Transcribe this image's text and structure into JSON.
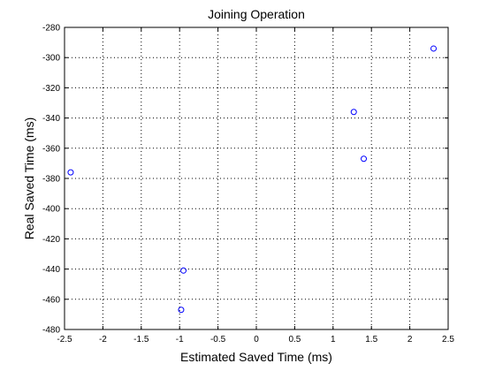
{
  "chart_data": {
    "type": "scatter",
    "title": "Joining Operation",
    "xlabel": "Estimated Saved Time (ms)",
    "ylabel": "Real Saved Time (ms)",
    "xlim": [
      -2.5,
      2.5
    ],
    "ylim": [
      -480,
      -280
    ],
    "xticks": [
      -2.5,
      -2,
      -1.5,
      -1,
      -0.5,
      0,
      0.5,
      1,
      1.5,
      2,
      2.5
    ],
    "xtick_labels": [
      "-2.5",
      "-2",
      "-1.5",
      "-1",
      "-0.5",
      "0",
      "0.5",
      "1",
      "1.5",
      "2",
      "2.5"
    ],
    "yticks": [
      -280,
      -300,
      -320,
      -340,
      -360,
      -380,
      -400,
      -420,
      -440,
      -460,
      -480
    ],
    "ytick_labels": [
      "-280",
      "-300",
      "-320",
      "-340",
      "-360",
      "-380",
      "-400",
      "-420",
      "-440",
      "-460",
      "-480"
    ],
    "grid": true,
    "marker": "circle",
    "marker_color": "#0000ff",
    "points": [
      {
        "x": -2.42,
        "y": -376
      },
      {
        "x": -0.95,
        "y": -441
      },
      {
        "x": -0.98,
        "y": -467
      },
      {
        "x": 1.27,
        "y": -336
      },
      {
        "x": 1.4,
        "y": -367
      },
      {
        "x": 2.31,
        "y": -294
      }
    ]
  }
}
